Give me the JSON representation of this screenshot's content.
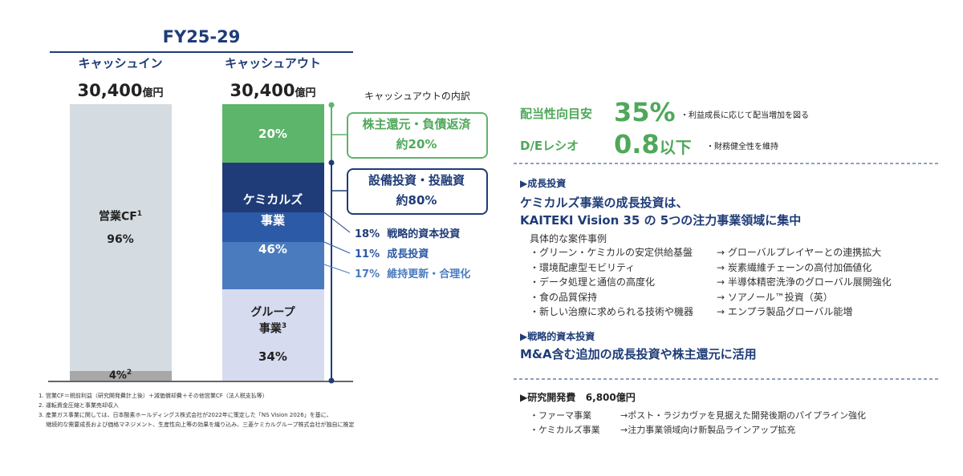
{
  "header": {
    "title": "FY25-29"
  },
  "cash_in": {
    "label": "キャッシュイン",
    "amount": "30,400",
    "unit": "億円",
    "segments": [
      {
        "label": "営業CF",
        "note": "1",
        "share": "96%"
      },
      {
        "label": "4%",
        "note": "2"
      }
    ]
  },
  "cash_out": {
    "label": "キャッシュアウト",
    "amount": "30,400",
    "unit": "億円",
    "segments": [
      {
        "share": "20%"
      },
      {
        "label_1": "ケミカルズ",
        "label_2": "事業",
        "share": "46%"
      },
      {
        "label_1": "グループ",
        "label_2": "事業",
        "note": "3",
        "share": "34%"
      }
    ]
  },
  "breakdown": {
    "title": "キャッシュアウトの内訳",
    "boxes": [
      {
        "title": "株主還元・負債返済",
        "value": "約20%"
      },
      {
        "title": "設備投資・投融資",
        "value": "約80%"
      }
    ],
    "items": [
      {
        "share": "18%",
        "label": "戦略的資本投資"
      },
      {
        "share": "11%",
        "label": "成長投資"
      },
      {
        "share": "17%",
        "label": "維持更新・合理化"
      }
    ]
  },
  "metrics": [
    {
      "label": "配当性向目安",
      "value": "35%",
      "note": "・利益成長に応じて配当増加を図る"
    },
    {
      "label": "D/Eレシオ",
      "value": "0.8",
      "suffix": "以下",
      "note": "・財務健全性を維持"
    }
  ],
  "growth": {
    "heading": "▶成長投資",
    "line_1": "ケミカルズ事業の成長投資は、",
    "line_2": "KAITEKI Vision 35 の 5つの注力事業領域に集中",
    "subheading": "具体的な案件事例",
    "items": [
      {
        "item": "・グリーン・ケミカルの安定供給基盤",
        "result": "→ グローバルプレイヤーとの連携拡大"
      },
      {
        "item": "・環境配慮型モビリティ",
        "result": "→ 炭素繊維チェーンの高付加価値化"
      },
      {
        "item": "・データ処理と通信の高度化",
        "result": "→ 半導体精密洗浄のグローバル展開強化"
      },
      {
        "item": "・食の品質保持",
        "result": "→ ソアノール™投資（英）"
      },
      {
        "item": "・新しい治療に求められる技術や機器",
        "result": "→ エンプラ製品グローバル能増"
      }
    ]
  },
  "strategic": {
    "heading": "▶戦略的資本投資",
    "text": "M&A含む追加の成長投資や株主還元に活用"
  },
  "rnd": {
    "heading": "▶研究開発費",
    "amount": "6,800億円",
    "items": [
      {
        "item": "・ファーマ事業",
        "result": "→ポスト・ラジカヴァを見据えた開発後期のパイプライン強化"
      },
      {
        "item": "・ケミカルズ事業",
        "result": "→注力事業領域向け新製品ラインアップ拡充"
      }
    ]
  },
  "footnotes": [
    "1. 営業CF＝税前利益（研究開発費計上後）＋減価償却費＋その他営業CF（法人税支払等）",
    "2. 運転資金圧縮と事業売却収入",
    "3. 産業ガス事業に関しては、日本酸素ホールディングス株式会社が2022年に策定した「NS Vision 2026」を基に、",
    "　 継続的な需要成長および価格マネジメント、生産性向上等の効果を織り込み、三菱ケミカルグループ株式会社が独自に推定"
  ]
}
